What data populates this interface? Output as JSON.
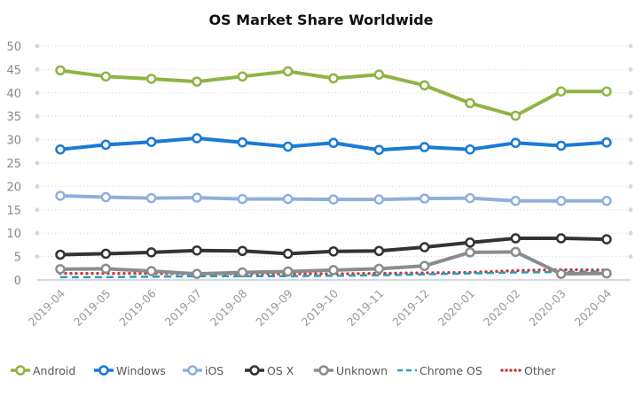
{
  "chart_data": {
    "type": "line",
    "title": "OS Market Share Worldwide",
    "xlabel": "",
    "ylabel": "",
    "ylim": [
      0,
      50
    ],
    "yticks": [
      0,
      5,
      10,
      15,
      20,
      25,
      30,
      35,
      40,
      45,
      50
    ],
    "grid": true,
    "legend_position": "bottom",
    "categories": [
      "2019-04",
      "2019-05",
      "2019-06",
      "2019-07",
      "2019-08",
      "2019-09",
      "2019-10",
      "2019-11",
      "2019-12",
      "2020-01",
      "2020-02",
      "2020-03",
      "2020-04"
    ],
    "series": [
      {
        "name": "Android",
        "color": "#8db542",
        "style": "solid",
        "markers": true,
        "values": [
          44.8,
          43.5,
          43.0,
          42.4,
          43.5,
          44.6,
          43.1,
          43.9,
          41.6,
          37.8,
          35.1,
          40.3,
          40.3
        ]
      },
      {
        "name": "Windows",
        "color": "#1a7ad4",
        "style": "solid",
        "markers": true,
        "values": [
          27.9,
          28.9,
          29.5,
          30.3,
          29.4,
          28.5,
          29.3,
          27.8,
          28.4,
          27.9,
          29.3,
          28.7,
          29.4
        ]
      },
      {
        "name": "iOS",
        "color": "#8fb0dc",
        "style": "solid",
        "markers": true,
        "values": [
          18.0,
          17.7,
          17.5,
          17.6,
          17.3,
          17.3,
          17.2,
          17.2,
          17.4,
          17.5,
          16.9,
          16.9,
          16.9
        ]
      },
      {
        "name": "OS X",
        "color": "#333333",
        "style": "solid",
        "markers": true,
        "values": [
          5.4,
          5.6,
          5.9,
          6.3,
          6.2,
          5.6,
          6.1,
          6.2,
          7.0,
          8.0,
          8.9,
          8.9,
          8.7
        ]
      },
      {
        "name": "Unknown",
        "color": "#8a8c8e",
        "style": "solid",
        "markers": true,
        "values": [
          2.3,
          2.4,
          1.9,
          1.3,
          1.6,
          1.8,
          2.1,
          2.4,
          3.0,
          5.9,
          6.0,
          1.3,
          1.4
        ]
      },
      {
        "name": "Chrome OS",
        "color": "#2a9dbb",
        "style": "dashed",
        "markers": false,
        "values": [
          0.6,
          0.6,
          0.7,
          0.8,
          0.8,
          0.8,
          0.9,
          1.0,
          1.2,
          1.4,
          1.6,
          1.7,
          1.8
        ]
      },
      {
        "name": "Other",
        "color": "#c93a3a",
        "style": "dotted",
        "markers": false,
        "values": [
          1.4,
          1.4,
          1.4,
          1.3,
          1.3,
          1.3,
          1.3,
          1.4,
          1.5,
          1.6,
          2.0,
          2.2,
          2.1
        ]
      }
    ]
  }
}
